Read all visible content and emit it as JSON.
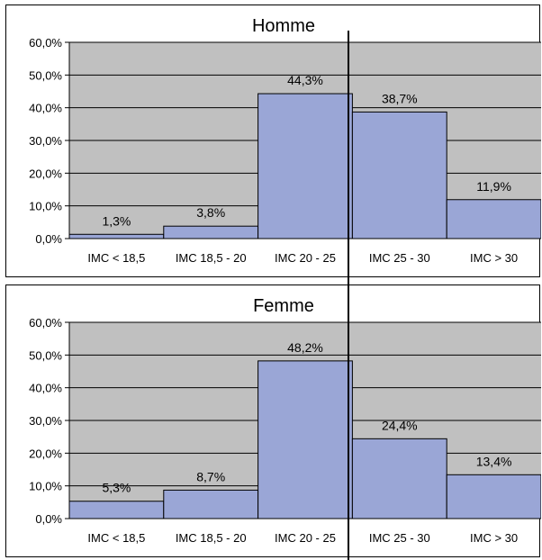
{
  "chart_data": [
    {
      "type": "bar",
      "title": "Homme",
      "categories": [
        "IMC < 18,5",
        "IMC 18,5 - 20",
        "IMC 20 - 25",
        "IMC 25 - 30",
        "IMC > 30"
      ],
      "values": [
        1.3,
        3.8,
        44.3,
        38.7,
        11.9
      ],
      "value_labels": [
        "1,3%",
        "3,8%",
        "44,3%",
        "38,7%",
        "11,9%"
      ],
      "yticks": [
        "0,0%",
        "10,0%",
        "20,0%",
        "30,0%",
        "40,0%",
        "50,0%",
        "60,0%"
      ],
      "ylim": [
        0,
        60
      ],
      "grid": true,
      "xlabel": "",
      "ylabel": ""
    },
    {
      "type": "bar",
      "title": "Femme",
      "categories": [
        "IMC < 18,5",
        "IMC 18,5 - 20",
        "IMC 20 - 25",
        "IMC 25 - 30",
        "IMC > 30"
      ],
      "values": [
        5.3,
        8.7,
        48.2,
        24.4,
        13.4
      ],
      "value_labels": [
        "5,3%",
        "8,7%",
        "48,2%",
        "24,4%",
        "13,4%"
      ],
      "yticks": [
        "0,0%",
        "10,0%",
        "20,0%",
        "30,0%",
        "40,0%",
        "50,0%",
        "60,0%"
      ],
      "ylim": [
        0,
        60
      ],
      "grid": true,
      "xlabel": "",
      "ylabel": ""
    }
  ],
  "colors": {
    "plot_background": "#c0c0c0",
    "bar_fill": "#9aa6d6",
    "bar_stroke": "#000000",
    "gridline": "#000000",
    "separator_line": "#000000"
  }
}
